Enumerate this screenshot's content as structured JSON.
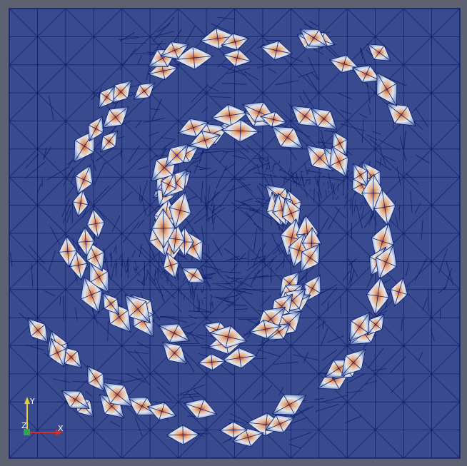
{
  "viewport": {
    "background_color": "#5d6272",
    "domain_fill_color": "#3a4a8e",
    "mesh_line_color": "#0e1f6e",
    "element_colors": {
      "low": "#3a4a8e",
      "mid": "#dfe7f1",
      "high": "#c4512a"
    }
  },
  "orientation_axes": {
    "x_label": "X",
    "y_label": "Y",
    "z_label": "Z",
    "x_color": "#d62e2e",
    "y_color": "#e3cf2a",
    "z_color": "#2ea84c"
  }
}
